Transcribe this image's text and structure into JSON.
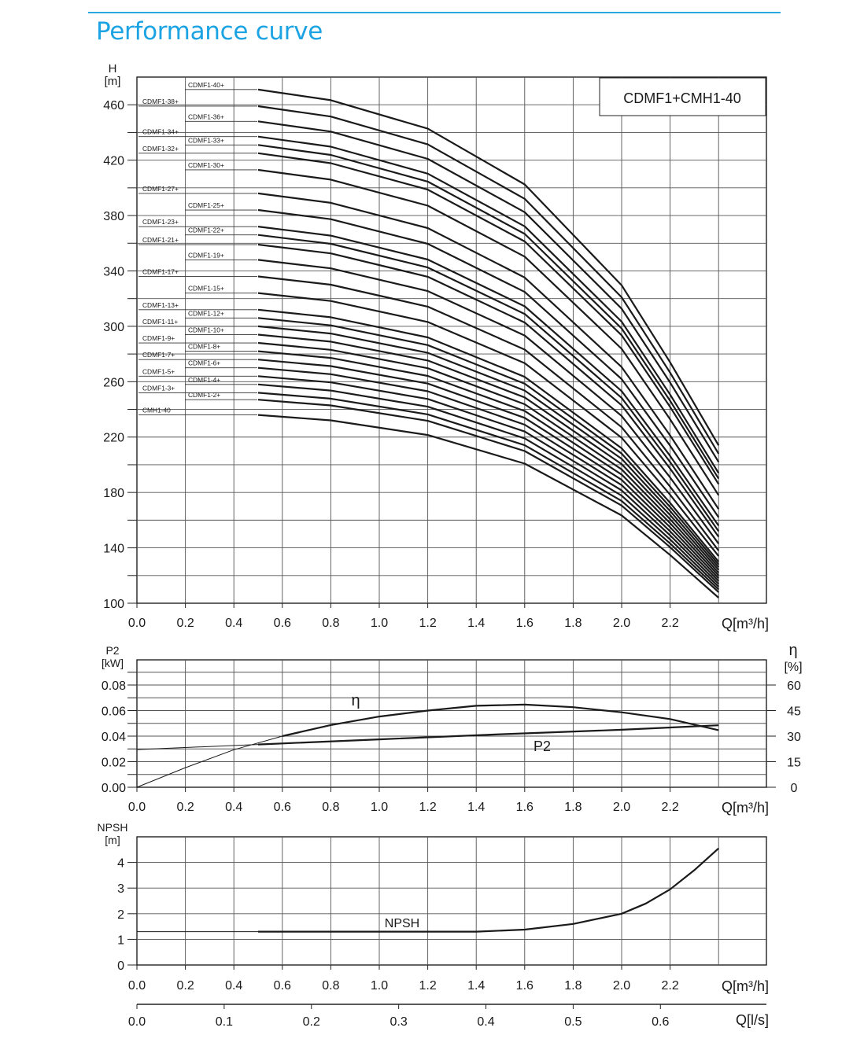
{
  "title": "Performance curve",
  "colors": {
    "title": "#1ba3e3",
    "rule": "#29a8e0",
    "grid": "#555555",
    "curve": "#1a1a1a"
  },
  "chart_data": [
    {
      "type": "line",
      "model_label": "CDMF1+CMH1-40",
      "y_unit_top": "H",
      "y_unit_bottom": "[m]",
      "xlabel": "Q[m³/h]",
      "xlim": [
        0,
        2.6
      ],
      "ylim": [
        100,
        480
      ],
      "x_ticks": [
        "0.0",
        "0.2",
        "0.4",
        "0.6",
        "0.8",
        "1.0",
        "1.2",
        "1.4",
        "1.6",
        "1.8",
        "2.0",
        "2.2"
      ],
      "y_ticks": [
        "100",
        "140",
        "180",
        "220",
        "260",
        "300",
        "340",
        "380",
        "420",
        "460"
      ],
      "grid": true,
      "curve_x": [
        0.5,
        0.8,
        1.2,
        1.6,
        2.0,
        2.2,
        2.4
      ],
      "curve_shape": [
        0,
        0.018,
        0.066,
        0.16,
        0.33,
        0.46,
        0.6
      ],
      "series": [
        {
          "name": "CMH1-40",
          "shutoff": 236,
          "end": 104
        },
        {
          "name": "CDMF1-2+",
          "shutoff": 247,
          "end": 108
        },
        {
          "name": "CDMF1-3+",
          "shutoff": 252,
          "end": 110
        },
        {
          "name": "CDMF1-4+",
          "shutoff": 258,
          "end": 112
        },
        {
          "name": "CDMF1-5+",
          "shutoff": 264,
          "end": 114
        },
        {
          "name": "CDMF1-6+",
          "shutoff": 270,
          "end": 116
        },
        {
          "name": "CDMF1-7+",
          "shutoff": 276,
          "end": 118
        },
        {
          "name": "CDMF1-8+",
          "shutoff": 282,
          "end": 120
        },
        {
          "name": "CDMF1-9+",
          "shutoff": 288,
          "end": 122
        },
        {
          "name": "CDMF1-10+",
          "shutoff": 294,
          "end": 124
        },
        {
          "name": "CDMF1-11+",
          "shutoff": 300,
          "end": 126
        },
        {
          "name": "CDMF1-12+",
          "shutoff": 306,
          "end": 128
        },
        {
          "name": "CDMF1-13+",
          "shutoff": 312,
          "end": 130
        },
        {
          "name": "CDMF1-15+",
          "shutoff": 324,
          "end": 134
        },
        {
          "name": "CDMF1-17+",
          "shutoff": 336,
          "end": 138
        },
        {
          "name": "CDMF1-19+",
          "shutoff": 348,
          "end": 143
        },
        {
          "name": "CDMF1-21+",
          "shutoff": 359,
          "end": 148
        },
        {
          "name": "CDMF1-22+",
          "shutoff": 366,
          "end": 152
        },
        {
          "name": "CDMF1-23+",
          "shutoff": 372,
          "end": 156
        },
        {
          "name": "CDMF1-25+",
          "shutoff": 384,
          "end": 162
        },
        {
          "name": "CDMF1-27+",
          "shutoff": 396,
          "end": 168
        },
        {
          "name": "CDMF1-30+",
          "shutoff": 413,
          "end": 178
        },
        {
          "name": "CDMF1-32+",
          "shutoff": 425,
          "end": 186
        },
        {
          "name": "CDMF1-33+",
          "shutoff": 431,
          "end": 190
        },
        {
          "name": "CDMF1-34+",
          "shutoff": 437,
          "end": 194
        },
        {
          "name": "CDMF1-36+",
          "shutoff": 448,
          "end": 202
        },
        {
          "name": "CDMF1-38+",
          "shutoff": 459,
          "end": 208
        },
        {
          "name": "CDMF1-40+",
          "shutoff": 471,
          "end": 214
        }
      ]
    },
    {
      "type": "line",
      "y_unit_top": "P2",
      "y_unit_bottom": "[kW]",
      "y2_unit_top": "η",
      "y2_unit_bottom": "[%]",
      "xlabel": "Q[m³/h]",
      "xlim": [
        0,
        2.6
      ],
      "ylim": [
        0,
        0.1
      ],
      "y2lim": [
        0,
        75
      ],
      "x_ticks": [
        "0.0",
        "0.2",
        "0.4",
        "0.6",
        "0.8",
        "1.0",
        "1.2",
        "1.4",
        "1.6",
        "1.8",
        "2.0",
        "2.2"
      ],
      "y_ticks": [
        "0.00",
        "0.02",
        "0.04",
        "0.06",
        "0.08"
      ],
      "y2_ticks": [
        "0",
        "15",
        "30",
        "45",
        "60"
      ],
      "grid": true,
      "series": [
        {
          "name": "P2",
          "axis": "left",
          "x": [
            0,
            0.5,
            1.0,
            1.5,
            2.0,
            2.4
          ],
          "y": [
            0.0295,
            0.0335,
            0.0375,
            0.0415,
            0.045,
            0.0485
          ]
        },
        {
          "name": "η",
          "axis": "right",
          "x": [
            0,
            0.2,
            0.4,
            0.6,
            0.8,
            1.0,
            1.2,
            1.4,
            1.6,
            1.8,
            2.0,
            2.2,
            2.4
          ],
          "y": [
            0,
            11.5,
            22,
            30,
            36.5,
            41.5,
            45,
            47.8,
            48.5,
            47,
            44,
            40,
            33.5
          ]
        }
      ]
    },
    {
      "type": "line",
      "y_unit_top": "NPSH",
      "y_unit_bottom": "[m]",
      "xlabel": "Q[m³/h]",
      "xlim": [
        0,
        2.6
      ],
      "ylim": [
        0,
        5
      ],
      "x_ticks": [
        "0.0",
        "0.2",
        "0.4",
        "0.6",
        "0.8",
        "1.0",
        "1.2",
        "1.4",
        "1.6",
        "1.8",
        "2.0",
        "2.2"
      ],
      "y_ticks": [
        "0",
        "1",
        "2",
        "3",
        "4"
      ],
      "grid": true,
      "secondary_xlabel": "Q[l/s]",
      "secondary_x_ticks": [
        "0.0",
        "0.1",
        "0.2",
        "0.3",
        "0.4",
        "0.5",
        "0.6"
      ],
      "series": [
        {
          "name": "NPSH",
          "x": [
            0,
            0.5,
            1.0,
            1.4,
            1.6,
            1.8,
            2.0,
            2.1,
            2.2,
            2.3,
            2.4
          ],
          "y": [
            1.3,
            1.3,
            1.3,
            1.3,
            1.38,
            1.6,
            2.0,
            2.4,
            2.95,
            3.7,
            4.55
          ]
        }
      ]
    }
  ]
}
